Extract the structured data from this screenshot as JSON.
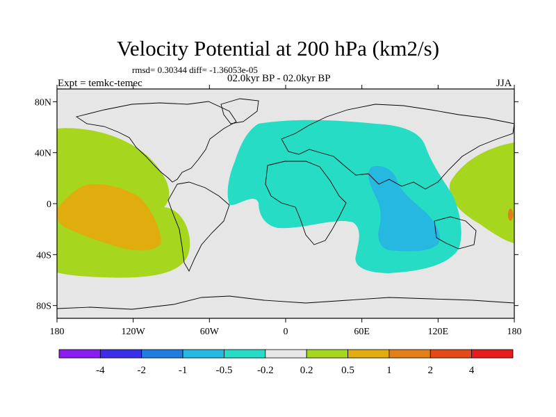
{
  "title": "Velocity Potential at 200 hPa (km2/s)",
  "stats_line": "rmsd= 0.30344 diff= -1.36053e-05",
  "expt_label": "Expt = temkc-temec",
  "period_label": "02.0kyr BP - 02.0kyr BP",
  "season_label": "JJA",
  "map": {
    "projection": "cylindrical equidistant",
    "lon_range": [
      -180,
      180
    ],
    "lat_range": [
      -90,
      90
    ],
    "lat_ticks": [
      {
        "value": 80,
        "label": "80N"
      },
      {
        "value": 40,
        "label": "40N"
      },
      {
        "value": 0,
        "label": "0"
      },
      {
        "value": -40,
        "label": "40S"
      },
      {
        "value": -80,
        "label": "80S"
      }
    ],
    "lon_ticks": [
      {
        "value": -180,
        "label": "180"
      },
      {
        "value": -120,
        "label": "120W"
      },
      {
        "value": -60,
        "label": "60W"
      },
      {
        "value": 0,
        "label": "0"
      },
      {
        "value": 60,
        "label": "60E"
      },
      {
        "value": 120,
        "label": "120E"
      },
      {
        "value": 180,
        "label": "180"
      }
    ],
    "background_color": "#e6e6e6"
  },
  "colorbar": {
    "labels": [
      "-4",
      "-2",
      "-1",
      "-0.5",
      "-0.2",
      "0.2",
      "0.5",
      "1",
      "2",
      "4"
    ],
    "colors": [
      "#8b1cf0",
      "#3a2ee8",
      "#1f7ddf",
      "#27b8e2",
      "#27dcc4",
      "#e6e6e6",
      "#a6d61e",
      "#e0ac0e",
      "#e47e16",
      "#e44a16",
      "#e81c1c"
    ]
  },
  "field_colors": {
    "pos_02_05": "#a6d61e",
    "pos_05_1": "#e0ac0e",
    "neg_02_05": "#27dcc4",
    "neg_05_1": "#27b8e2",
    "pos_1_2": "#e47e16"
  }
}
